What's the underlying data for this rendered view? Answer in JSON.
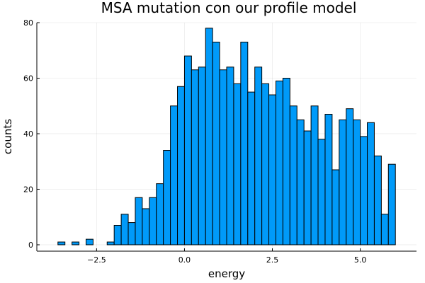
{
  "chart_data": {
    "type": "bar",
    "title": "MSA mutation con our profile model",
    "xlabel": "energy",
    "ylabel": "counts",
    "bar_color": "#009AF9",
    "bin_start": -3.6,
    "bin_width": 0.2,
    "values": [
      1,
      0,
      1,
      0,
      2,
      0,
      0,
      1,
      7,
      11,
      8,
      17,
      13,
      17,
      22,
      34,
      50,
      57,
      68,
      63,
      64,
      78,
      73,
      63,
      64,
      58,
      73,
      55,
      64,
      58,
      54,
      59,
      60,
      50,
      45,
      41,
      50,
      38,
      47,
      27,
      45,
      49,
      45,
      39,
      44,
      32,
      11,
      29
    ],
    "xlim": [
      -4.2,
      6.6
    ],
    "ylim": [
      -2.3,
      80
    ],
    "xticks": [
      -2.5,
      0.0,
      2.5,
      5.0
    ],
    "xtick_labels": [
      "−2.5",
      "0.0",
      "2.5",
      "5.0"
    ],
    "yticks": [
      0,
      20,
      40,
      60,
      80
    ],
    "ytick_labels": [
      "0",
      "20",
      "40",
      "60",
      "80"
    ],
    "grid": true,
    "legend": false
  }
}
